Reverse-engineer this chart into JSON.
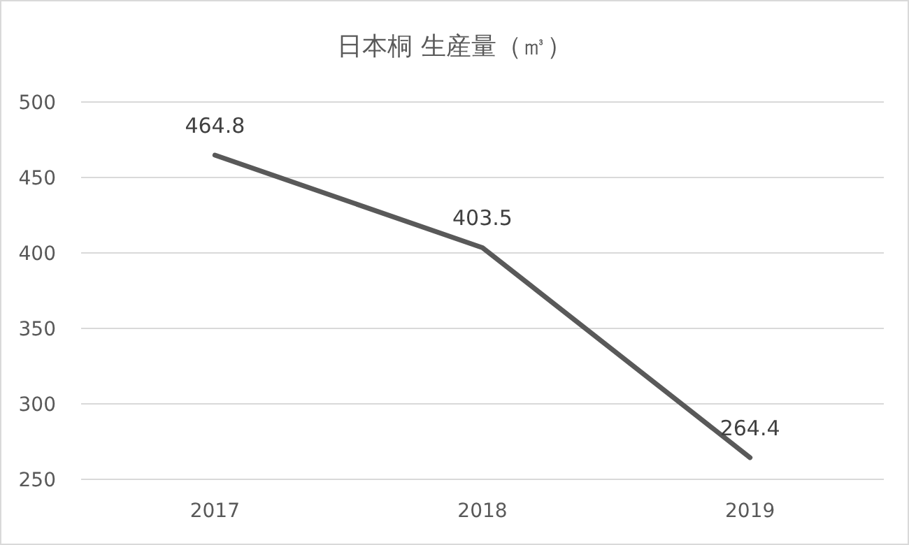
{
  "chart_data": {
    "type": "line",
    "title": "日本桐 生産量（㎥）",
    "categories": [
      "2017",
      "2018",
      "2019"
    ],
    "values": [
      464.8,
      403.5,
      264.4
    ],
    "color": "#595959",
    "ylim": [
      250,
      500
    ],
    "yticks": [
      250,
      300,
      350,
      400,
      450,
      500
    ],
    "grid": "y",
    "data_labels": true
  }
}
